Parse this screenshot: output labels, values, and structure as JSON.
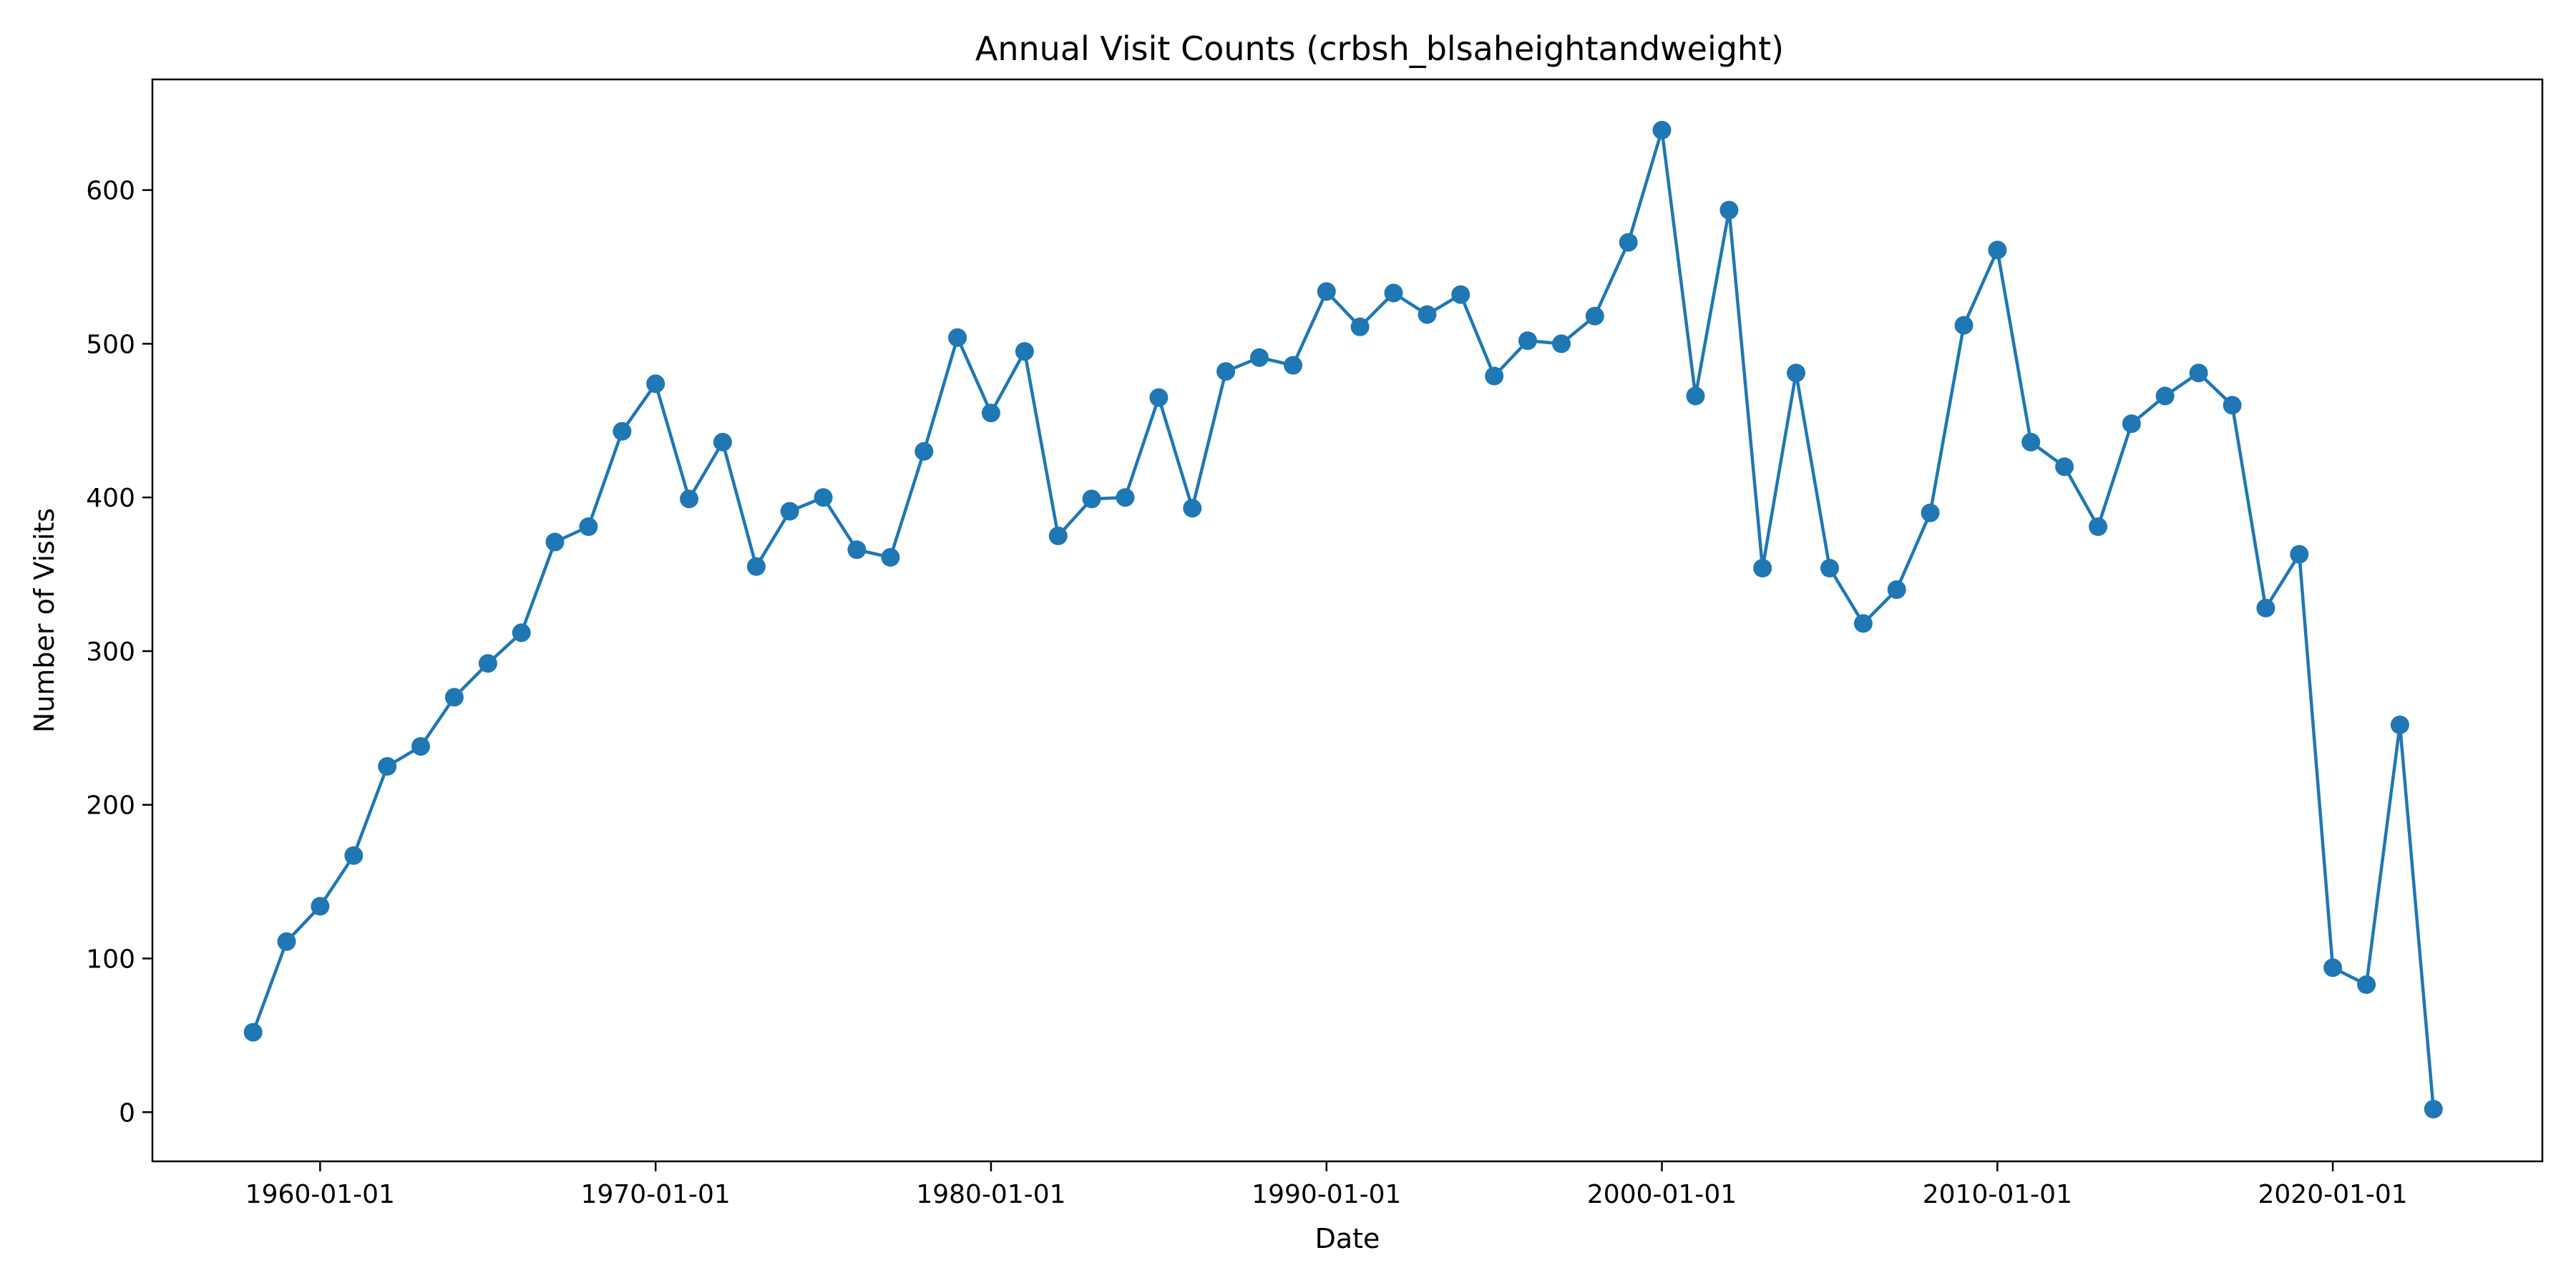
{
  "chart_data": {
    "type": "line",
    "title": "Annual Visit Counts (crbsh_blsaheightandweight)",
    "xlabel": "Date",
    "ylabel": "Number of Visits",
    "x_ticks": [
      "1960-01-01",
      "1970-01-01",
      "1980-01-01",
      "1990-01-01",
      "2000-01-01",
      "2010-01-01",
      "2020-01-01"
    ],
    "y_ticks": [
      0,
      100,
      200,
      300,
      400,
      500,
      600
    ],
    "xlim": [
      "1955-01-01",
      "2026-04-01"
    ],
    "ylim": [
      -32,
      672
    ],
    "grid": false,
    "color": "#1f77b4",
    "marker": "circle",
    "x": [
      "1958-01-01",
      "1959-01-01",
      "1960-01-01",
      "1961-01-01",
      "1962-01-01",
      "1963-01-01",
      "1964-01-01",
      "1965-01-01",
      "1966-01-01",
      "1967-01-01",
      "1968-01-01",
      "1969-01-01",
      "1970-01-01",
      "1971-01-01",
      "1972-01-01",
      "1973-01-01",
      "1974-01-01",
      "1975-01-01",
      "1976-01-01",
      "1977-01-01",
      "1978-01-01",
      "1979-01-01",
      "1980-01-01",
      "1981-01-01",
      "1982-01-01",
      "1983-01-01",
      "1984-01-01",
      "1985-01-01",
      "1986-01-01",
      "1987-01-01",
      "1988-01-01",
      "1989-01-01",
      "1990-01-01",
      "1991-01-01",
      "1992-01-01",
      "1993-01-01",
      "1994-01-01",
      "1995-01-01",
      "1996-01-01",
      "1997-01-01",
      "1998-01-01",
      "1999-01-01",
      "2000-01-01",
      "2001-01-01",
      "2002-01-01",
      "2003-01-01",
      "2004-01-01",
      "2005-01-01",
      "2006-01-01",
      "2007-01-01",
      "2008-01-01",
      "2009-01-01",
      "2010-01-01",
      "2011-01-01",
      "2012-01-01",
      "2013-01-01",
      "2014-01-01",
      "2015-01-01",
      "2016-01-01",
      "2017-01-01",
      "2018-01-01",
      "2019-01-01",
      "2020-01-01",
      "2021-01-01",
      "2022-01-01",
      "2023-01-01"
    ],
    "series": [
      {
        "values": [
          52,
          111,
          134,
          167,
          225,
          238,
          270,
          292,
          312,
          371,
          381,
          443,
          474,
          399,
          436,
          355,
          391,
          400,
          366,
          361,
          430,
          504,
          455,
          495,
          375,
          399,
          400,
          465,
          393,
          482,
          491,
          486,
          534,
          511,
          533,
          519,
          532,
          479,
          502,
          500,
          518,
          566,
          639,
          466,
          587,
          354,
          481,
          354,
          318,
          340,
          390,
          512,
          561,
          436,
          420,
          381,
          448,
          466,
          481,
          460,
          328,
          363,
          94,
          83,
          252,
          2
        ]
      }
    ]
  }
}
